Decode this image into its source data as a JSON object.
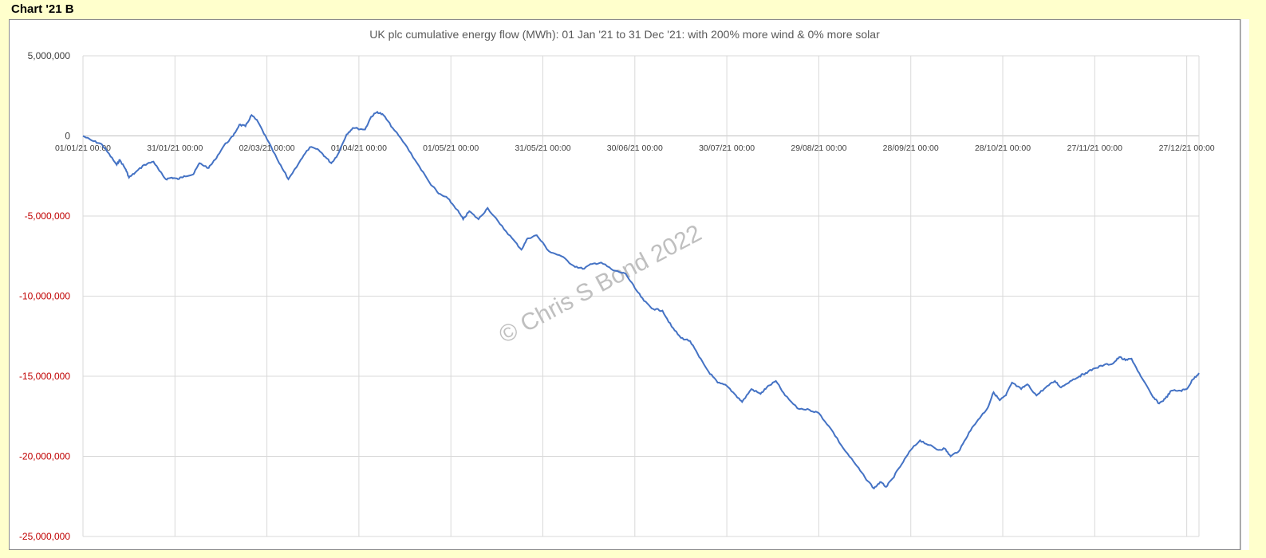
{
  "sheet_label": "Chart '21 B",
  "watermark": "© Chris S Bond  2022",
  "colors": {
    "line": "#4472c4",
    "negative_tick": "#c00000",
    "positive_tick": "#404040",
    "grid": "#d9d9d9",
    "background": "#ffffcc"
  },
  "chart_data": {
    "type": "line",
    "title": "UK plc cumulative energy flow (MWh): 01 Jan '21 to 31 Dec '21: with 200% more wind & 0% more solar",
    "xlabel": "",
    "ylabel": "",
    "ylim": [
      -25000000,
      5000000
    ],
    "xlim": [
      "2021-01-01",
      "2021-12-31"
    ],
    "y_ticks": [
      {
        "value": 5000000,
        "label": "5,000,000"
      },
      {
        "value": 0,
        "label": "0"
      },
      {
        "value": -5000000,
        "label": "-5,000,000"
      },
      {
        "value": -10000000,
        "label": "-10,000,000"
      },
      {
        "value": -15000000,
        "label": "-15,000,000"
      },
      {
        "value": -20000000,
        "label": "-20,000,000"
      },
      {
        "value": -25000000,
        "label": "-25,000,000"
      }
    ],
    "x_ticks": [
      {
        "date": "2021-01-01",
        "label": "01/01/21 00:00"
      },
      {
        "date": "2021-01-31",
        "label": "31/01/21 00:00"
      },
      {
        "date": "2021-03-02",
        "label": "02/03/21 00:00"
      },
      {
        "date": "2021-04-01",
        "label": "01/04/21 00:00"
      },
      {
        "date": "2021-05-01",
        "label": "01/05/21 00:00"
      },
      {
        "date": "2021-05-31",
        "label": "31/05/21 00:00"
      },
      {
        "date": "2021-06-30",
        "label": "30/06/21 00:00"
      },
      {
        "date": "2021-07-30",
        "label": "30/07/21 00:00"
      },
      {
        "date": "2021-08-29",
        "label": "29/08/21 00:00"
      },
      {
        "date": "2021-09-28",
        "label": "28/09/21 00:00"
      },
      {
        "date": "2021-10-28",
        "label": "28/10/21 00:00"
      },
      {
        "date": "2021-11-27",
        "label": "27/11/21 00:00"
      },
      {
        "date": "2021-12-27",
        "label": "27/12/21 00:00"
      }
    ],
    "grid": true,
    "legend": "none",
    "series": [
      {
        "points": [
          [
            "2021-01-01",
            0
          ],
          [
            "2021-01-04",
            -300000
          ],
          [
            "2021-01-07",
            -500000
          ],
          [
            "2021-01-09",
            -1000000
          ],
          [
            "2021-01-12",
            -1800000
          ],
          [
            "2021-01-13",
            -1500000
          ],
          [
            "2021-01-15",
            -2100000
          ],
          [
            "2021-01-16",
            -2600000
          ],
          [
            "2021-01-18",
            -2300000
          ],
          [
            "2021-01-21",
            -1800000
          ],
          [
            "2021-01-24",
            -1600000
          ],
          [
            "2021-01-26",
            -2200000
          ],
          [
            "2021-01-28",
            -2700000
          ],
          [
            "2021-01-30",
            -2600000
          ],
          [
            "2021-02-01",
            -2700000
          ],
          [
            "2021-02-03",
            -2500000
          ],
          [
            "2021-02-06",
            -2400000
          ],
          [
            "2021-02-08",
            -1700000
          ],
          [
            "2021-02-11",
            -2000000
          ],
          [
            "2021-02-13",
            -1500000
          ],
          [
            "2021-02-16",
            -600000
          ],
          [
            "2021-02-19",
            0
          ],
          [
            "2021-02-21",
            700000
          ],
          [
            "2021-02-23",
            600000
          ],
          [
            "2021-02-25",
            1300000
          ],
          [
            "2021-02-27",
            900000
          ],
          [
            "2021-03-02",
            -200000
          ],
          [
            "2021-03-06",
            -1700000
          ],
          [
            "2021-03-09",
            -2700000
          ],
          [
            "2021-03-13",
            -1500000
          ],
          [
            "2021-03-16",
            -700000
          ],
          [
            "2021-03-19",
            -900000
          ],
          [
            "2021-03-21",
            -1300000
          ],
          [
            "2021-03-23",
            -1700000
          ],
          [
            "2021-03-25",
            -1200000
          ],
          [
            "2021-03-28",
            100000
          ],
          [
            "2021-03-30",
            500000
          ],
          [
            "2021-04-03",
            400000
          ],
          [
            "2021-04-05",
            1200000
          ],
          [
            "2021-04-07",
            1500000
          ],
          [
            "2021-04-09",
            1300000
          ],
          [
            "2021-04-12",
            500000
          ],
          [
            "2021-04-16",
            -500000
          ],
          [
            "2021-04-20",
            -1700000
          ],
          [
            "2021-04-24",
            -2900000
          ],
          [
            "2021-04-27",
            -3600000
          ],
          [
            "2021-04-30",
            -3900000
          ],
          [
            "2021-05-03",
            -4600000
          ],
          [
            "2021-05-05",
            -5200000
          ],
          [
            "2021-05-07",
            -4700000
          ],
          [
            "2021-05-10",
            -5200000
          ],
          [
            "2021-05-13",
            -4500000
          ],
          [
            "2021-05-17",
            -5500000
          ],
          [
            "2021-05-21",
            -6400000
          ],
          [
            "2021-05-24",
            -7100000
          ],
          [
            "2021-05-26",
            -6400000
          ],
          [
            "2021-05-29",
            -6200000
          ],
          [
            "2021-06-02",
            -7200000
          ],
          [
            "2021-06-06",
            -7500000
          ],
          [
            "2021-06-10",
            -8100000
          ],
          [
            "2021-06-13",
            -8300000
          ],
          [
            "2021-06-16",
            -8000000
          ],
          [
            "2021-06-19",
            -7900000
          ],
          [
            "2021-06-23",
            -8400000
          ],
          [
            "2021-06-27",
            -8600000
          ],
          [
            "2021-06-30",
            -9500000
          ],
          [
            "2021-07-03",
            -10300000
          ],
          [
            "2021-07-06",
            -10800000
          ],
          [
            "2021-07-09",
            -10900000
          ],
          [
            "2021-07-12",
            -11900000
          ],
          [
            "2021-07-15",
            -12600000
          ],
          [
            "2021-07-18",
            -12800000
          ],
          [
            "2021-07-21",
            -13800000
          ],
          [
            "2021-07-24",
            -14700000
          ],
          [
            "2021-07-27",
            -15400000
          ],
          [
            "2021-07-30",
            -15600000
          ],
          [
            "2021-08-02",
            -16200000
          ],
          [
            "2021-08-04",
            -16600000
          ],
          [
            "2021-08-07",
            -15800000
          ],
          [
            "2021-08-10",
            -16100000
          ],
          [
            "2021-08-12",
            -15700000
          ],
          [
            "2021-08-15",
            -15300000
          ],
          [
            "2021-08-18",
            -16200000
          ],
          [
            "2021-08-22",
            -17000000
          ],
          [
            "2021-08-26",
            -17100000
          ],
          [
            "2021-08-29",
            -17300000
          ],
          [
            "2021-09-02",
            -18300000
          ],
          [
            "2021-09-06",
            -19500000
          ],
          [
            "2021-09-10",
            -20500000
          ],
          [
            "2021-09-13",
            -21300000
          ],
          [
            "2021-09-16",
            -22000000
          ],
          [
            "2021-09-18",
            -21600000
          ],
          [
            "2021-09-20",
            -21900000
          ],
          [
            "2021-09-22",
            -21400000
          ],
          [
            "2021-09-25",
            -20500000
          ],
          [
            "2021-09-28",
            -19600000
          ],
          [
            "2021-10-01",
            -19000000
          ],
          [
            "2021-10-04",
            -19300000
          ],
          [
            "2021-10-07",
            -19600000
          ],
          [
            "2021-10-09",
            -19500000
          ],
          [
            "2021-10-11",
            -20000000
          ],
          [
            "2021-10-14",
            -19600000
          ],
          [
            "2021-10-17",
            -18500000
          ],
          [
            "2021-10-20",
            -17700000
          ],
          [
            "2021-10-23",
            -17000000
          ],
          [
            "2021-10-25",
            -16000000
          ],
          [
            "2021-10-27",
            -16500000
          ],
          [
            "2021-10-29",
            -16200000
          ],
          [
            "2021-10-31",
            -15400000
          ],
          [
            "2021-11-03",
            -15800000
          ],
          [
            "2021-11-05",
            -15500000
          ],
          [
            "2021-11-08",
            -16200000
          ],
          [
            "2021-11-11",
            -15700000
          ],
          [
            "2021-11-14",
            -15300000
          ],
          [
            "2021-11-16",
            -15700000
          ],
          [
            "2021-11-19",
            -15300000
          ],
          [
            "2021-11-22",
            -15000000
          ],
          [
            "2021-11-24",
            -14800000
          ],
          [
            "2021-11-27",
            -14500000
          ],
          [
            "2021-11-30",
            -14300000
          ],
          [
            "2021-12-03",
            -14200000
          ],
          [
            "2021-12-05",
            -13800000
          ],
          [
            "2021-12-07",
            -14000000
          ],
          [
            "2021-12-09",
            -13900000
          ],
          [
            "2021-12-12",
            -15000000
          ],
          [
            "2021-12-16",
            -16300000
          ],
          [
            "2021-12-18",
            -16700000
          ],
          [
            "2021-12-20",
            -16400000
          ],
          [
            "2021-12-22",
            -15900000
          ],
          [
            "2021-12-25",
            -15900000
          ],
          [
            "2021-12-27",
            -15800000
          ],
          [
            "2021-12-29",
            -15200000
          ],
          [
            "2021-12-31",
            -14800000
          ]
        ]
      }
    ]
  }
}
